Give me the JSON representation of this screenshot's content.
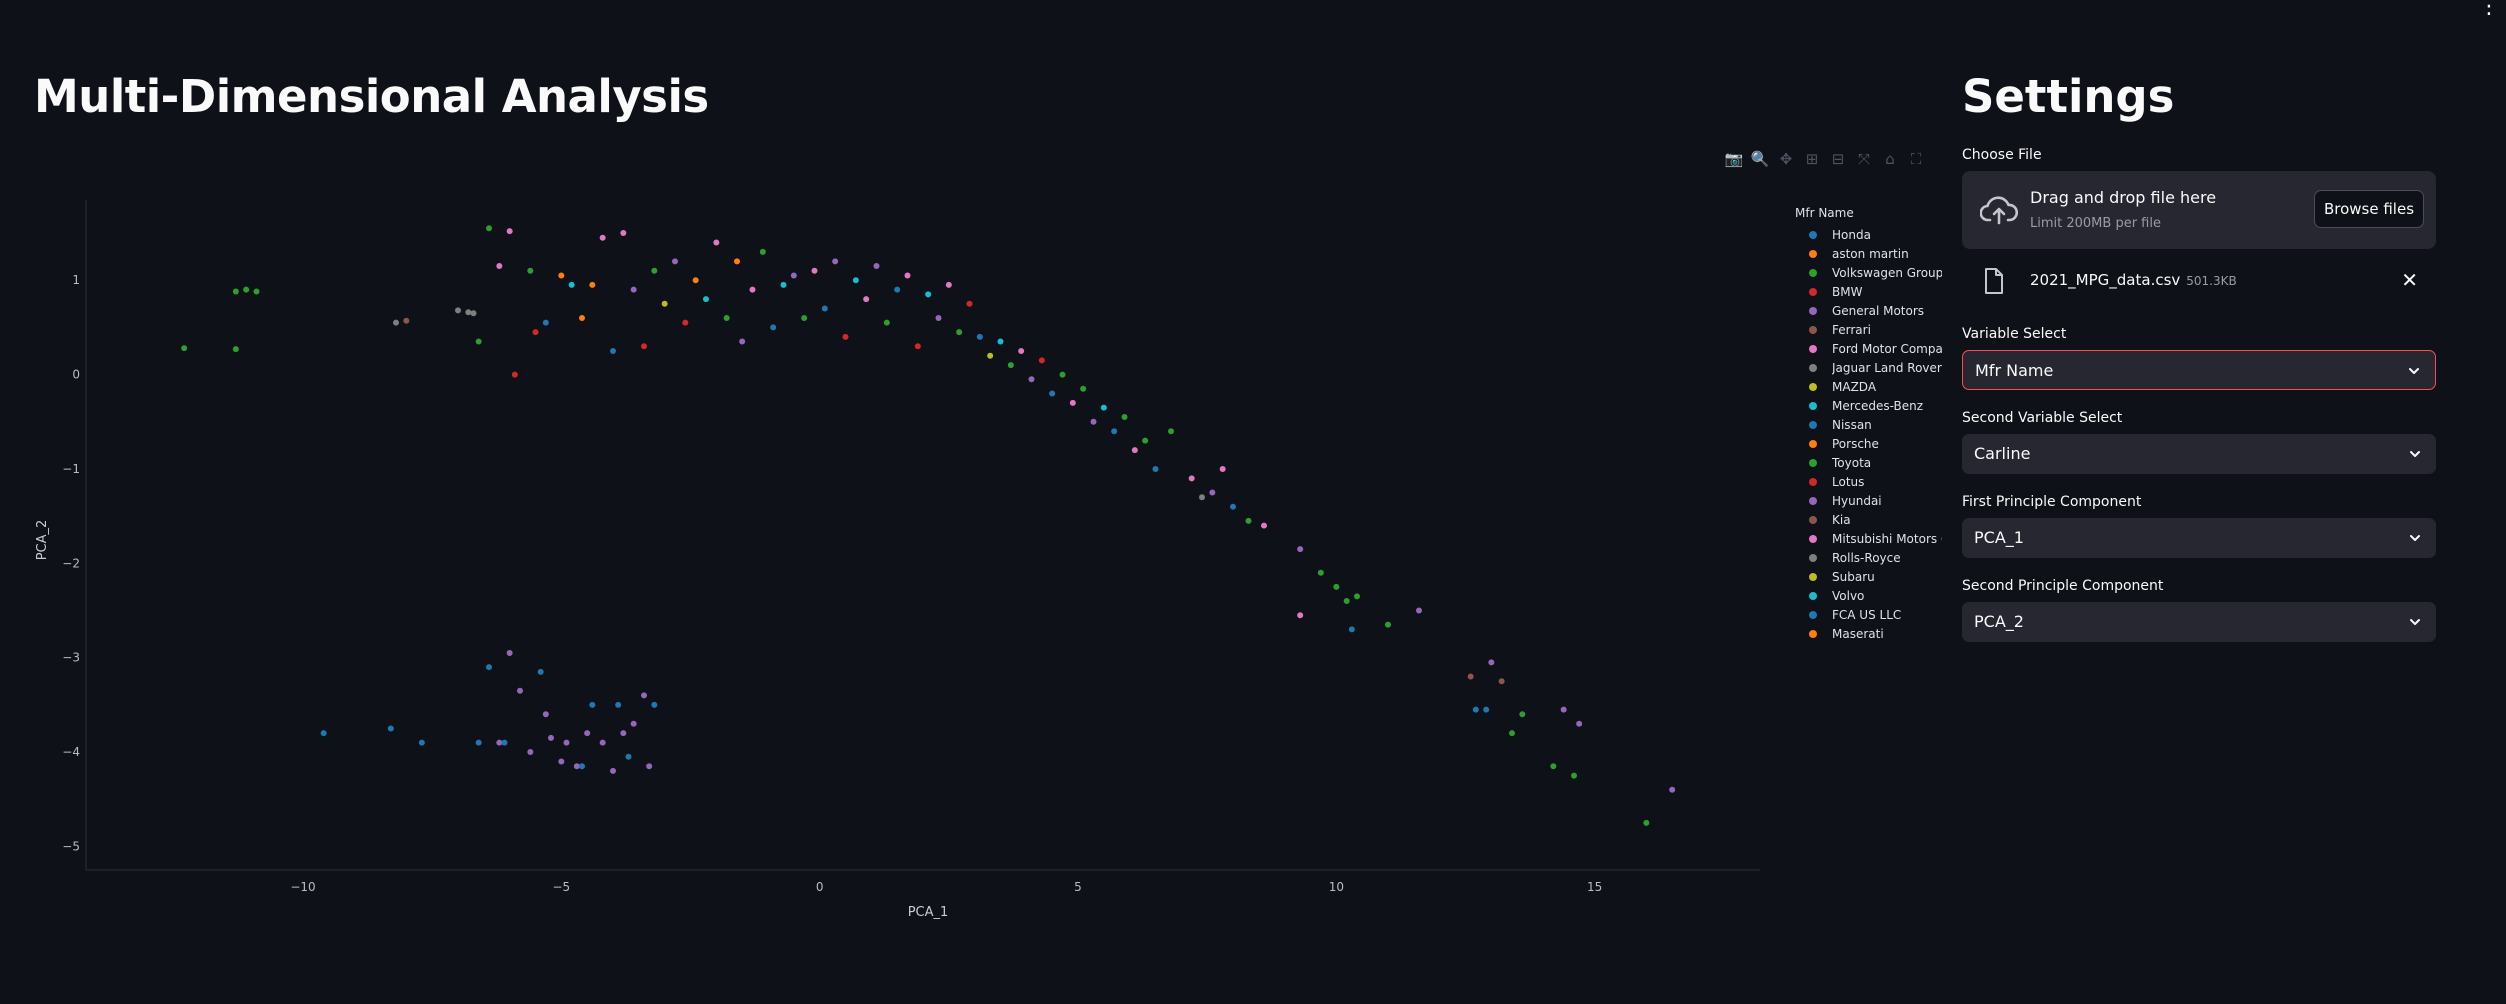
{
  "main": {
    "title": "Multi-Dimensional Analysis"
  },
  "modebar": [
    {
      "name": "camera-icon",
      "glyph": "📷"
    },
    {
      "name": "zoom-icon",
      "glyph": "🔍"
    },
    {
      "name": "pan-icon",
      "glyph": "✥"
    },
    {
      "name": "zoom-in-icon",
      "glyph": "⊞"
    },
    {
      "name": "zoom-out-icon",
      "glyph": "⊟"
    },
    {
      "name": "autoscale-icon",
      "glyph": "⤧"
    },
    {
      "name": "reset-axes-icon",
      "glyph": "⌂"
    },
    {
      "name": "fullscreen-icon",
      "glyph": "⛶"
    }
  ],
  "chart_data": {
    "type": "scatter",
    "title": "",
    "xlabel": "PCA_1",
    "ylabel": "PCA_2",
    "xlim": [
      -14.2,
      18.2
    ],
    "ylim": [
      -5.25,
      1.85
    ],
    "xticks": [
      -10,
      -5,
      0,
      5,
      10,
      15
    ],
    "yticks": [
      1,
      0,
      -1,
      -2,
      -3,
      -4,
      -5
    ],
    "tick_labels_x": [
      "−10",
      "−5",
      "0",
      "5",
      "10",
      "15"
    ],
    "tick_labels_y": [
      "1",
      "0",
      "−1",
      "−2",
      "−3",
      "−4",
      "−5"
    ],
    "grid": false,
    "legend_title": "Mfr Name",
    "legend_placement": "right",
    "series": [
      {
        "name": "Honda",
        "color": "#1f77b4"
      },
      {
        "name": "aston martin",
        "color": "#ff7f0e"
      },
      {
        "name": "Volkswagen Group of",
        "color": "#2ca02c"
      },
      {
        "name": "BMW",
        "color": "#d62728"
      },
      {
        "name": "General Motors",
        "color": "#9467bd"
      },
      {
        "name": "Ferrari",
        "color": "#8c564b"
      },
      {
        "name": "Ford Motor Company",
        "color": "#e377c2"
      },
      {
        "name": "Jaguar Land Rover L",
        "color": "#7f7f7f"
      },
      {
        "name": "MAZDA",
        "color": "#bcbd22"
      },
      {
        "name": "Mercedes-Benz",
        "color": "#17becf"
      },
      {
        "name": "Nissan",
        "color": "#1f77b4"
      },
      {
        "name": "Porsche",
        "color": "#ff7f0e"
      },
      {
        "name": "Toyota",
        "color": "#2ca02c"
      },
      {
        "name": "Lotus",
        "color": "#d62728"
      },
      {
        "name": "Hyundai",
        "color": "#9467bd"
      },
      {
        "name": "Kia",
        "color": "#8c564b"
      },
      {
        "name": "Mitsubishi Motors Co",
        "color": "#e377c2"
      },
      {
        "name": "Rolls-Royce",
        "color": "#7f7f7f"
      },
      {
        "name": "Subaru",
        "color": "#bcbd22"
      },
      {
        "name": "Volvo",
        "color": "#17becf"
      },
      {
        "name": "FCA US LLC",
        "color": "#1f77b4"
      },
      {
        "name": "Maserati",
        "color": "#ff7f0e"
      }
    ],
    "points": [
      [
        -12.3,
        0.28,
        2
      ],
      [
        -11.3,
        0.88,
        2
      ],
      [
        -11.1,
        0.9,
        2
      ],
      [
        -10.9,
        0.88,
        2
      ],
      [
        -11.3,
        0.27,
        2
      ],
      [
        -8.2,
        0.55,
        7
      ],
      [
        -8.0,
        0.57,
        5
      ],
      [
        -7.0,
        0.68,
        7
      ],
      [
        -6.8,
        0.66,
        7
      ],
      [
        -6.7,
        0.65,
        7
      ],
      [
        -6.6,
        0.35,
        2
      ],
      [
        -6.4,
        1.55,
        2
      ],
      [
        -6.0,
        1.52,
        6
      ],
      [
        -6.2,
        1.15,
        6
      ],
      [
        -5.9,
        0.0,
        3
      ],
      [
        -5.6,
        1.1,
        2
      ],
      [
        -5.5,
        0.45,
        3
      ],
      [
        -5.3,
        0.55,
        0
      ],
      [
        -5.0,
        1.05,
        1
      ],
      [
        -4.8,
        0.95,
        9
      ],
      [
        -4.6,
        0.6,
        1
      ],
      [
        -4.4,
        0.95,
        1
      ],
      [
        -4.2,
        1.45,
        6
      ],
      [
        -4.0,
        0.25,
        0
      ],
      [
        -3.8,
        1.5,
        6
      ],
      [
        -3.6,
        0.9,
        4
      ],
      [
        -3.4,
        0.3,
        3
      ],
      [
        -3.2,
        1.1,
        2
      ],
      [
        -3.0,
        0.75,
        8
      ],
      [
        -2.8,
        1.2,
        4
      ],
      [
        -2.6,
        0.55,
        3
      ],
      [
        -2.4,
        1.0,
        1
      ],
      [
        -2.2,
        0.8,
        9
      ],
      [
        -2.0,
        1.4,
        6
      ],
      [
        -1.8,
        0.6,
        2
      ],
      [
        -1.6,
        1.2,
        1
      ],
      [
        -1.5,
        0.35,
        4
      ],
      [
        -1.3,
        0.9,
        6
      ],
      [
        -1.1,
        1.3,
        2
      ],
      [
        -0.9,
        0.5,
        0
      ],
      [
        -0.7,
        0.95,
        9
      ],
      [
        -0.5,
        1.05,
        4
      ],
      [
        -0.3,
        0.6,
        2
      ],
      [
        -0.1,
        1.1,
        6
      ],
      [
        0.1,
        0.7,
        0
      ],
      [
        0.3,
        1.2,
        4
      ],
      [
        0.5,
        0.4,
        3
      ],
      [
        0.7,
        1.0,
        9
      ],
      [
        0.9,
        0.8,
        6
      ],
      [
        1.1,
        1.15,
        4
      ],
      [
        1.3,
        0.55,
        2
      ],
      [
        1.5,
        0.9,
        0
      ],
      [
        1.7,
        1.05,
        6
      ],
      [
        1.9,
        0.3,
        3
      ],
      [
        2.1,
        0.85,
        9
      ],
      [
        2.3,
        0.6,
        4
      ],
      [
        2.5,
        0.95,
        6
      ],
      [
        2.7,
        0.45,
        2
      ],
      [
        2.9,
        0.75,
        3
      ],
      [
        3.1,
        0.4,
        0
      ],
      [
        3.3,
        0.2,
        8
      ],
      [
        3.5,
        0.35,
        9
      ],
      [
        3.7,
        0.1,
        2
      ],
      [
        3.9,
        0.25,
        6
      ],
      [
        4.1,
        -0.05,
        4
      ],
      [
        4.3,
        0.15,
        3
      ],
      [
        4.5,
        -0.2,
        0
      ],
      [
        4.7,
        0.0,
        12
      ],
      [
        4.9,
        -0.3,
        6
      ],
      [
        5.1,
        -0.15,
        2
      ],
      [
        5.3,
        -0.5,
        4
      ],
      [
        5.5,
        -0.35,
        9
      ],
      [
        5.7,
        -0.6,
        0
      ],
      [
        5.9,
        -0.45,
        2
      ],
      [
        6.1,
        -0.8,
        6
      ],
      [
        6.3,
        -0.7,
        2
      ],
      [
        6.5,
        -1.0,
        0
      ],
      [
        6.8,
        -0.6,
        2
      ],
      [
        7.2,
        -1.1,
        6
      ],
      [
        7.4,
        -1.3,
        7
      ],
      [
        7.6,
        -1.25,
        4
      ],
      [
        7.8,
        -1.0,
        6
      ],
      [
        8.0,
        -1.4,
        0
      ],
      [
        8.3,
        -1.55,
        2
      ],
      [
        8.6,
        -1.6,
        6
      ],
      [
        9.3,
        -1.85,
        4
      ],
      [
        9.3,
        -2.55,
        6
      ],
      [
        9.7,
        -2.1,
        2
      ],
      [
        10.0,
        -2.25,
        2
      ],
      [
        10.2,
        -2.4,
        2
      ],
      [
        10.3,
        -2.7,
        0
      ],
      [
        10.4,
        -2.35,
        2
      ],
      [
        11.0,
        -2.65,
        2
      ],
      [
        11.6,
        -2.5,
        4
      ],
      [
        12.6,
        -3.2,
        5
      ],
      [
        12.7,
        -3.55,
        0
      ],
      [
        12.9,
        -3.55,
        0
      ],
      [
        13.0,
        -3.05,
        4
      ],
      [
        13.2,
        -3.25,
        5
      ],
      [
        13.4,
        -3.8,
        2
      ],
      [
        13.6,
        -3.6,
        2
      ],
      [
        14.2,
        -4.15,
        2
      ],
      [
        14.4,
        -3.55,
        4
      ],
      [
        14.6,
        -4.25,
        2
      ],
      [
        14.7,
        -3.7,
        4
      ],
      [
        16.0,
        -4.75,
        2
      ],
      [
        16.5,
        -4.4,
        4
      ],
      [
        -9.6,
        -3.8,
        0
      ],
      [
        -8.3,
        -3.75,
        0
      ],
      [
        -7.7,
        -3.9,
        0
      ],
      [
        -6.6,
        -3.9,
        0
      ],
      [
        -6.4,
        -3.1,
        0
      ],
      [
        -6.2,
        -3.9,
        4
      ],
      [
        -6.0,
        -2.95,
        4
      ],
      [
        -5.8,
        -3.35,
        4
      ],
      [
        -5.6,
        -4.0,
        4
      ],
      [
        -5.4,
        -3.15,
        0
      ],
      [
        -5.2,
        -3.85,
        4
      ],
      [
        -5.0,
        -4.1,
        4
      ],
      [
        -4.9,
        -3.9,
        4
      ],
      [
        -4.7,
        -4.15,
        4
      ],
      [
        -4.5,
        -3.8,
        4
      ],
      [
        -4.4,
        -3.5,
        0
      ],
      [
        -4.2,
        -3.9,
        4
      ],
      [
        -4.0,
        -4.2,
        4
      ],
      [
        -3.9,
        -3.5,
        0
      ],
      [
        -3.7,
        -4.05,
        0
      ],
      [
        -3.6,
        -3.7,
        4
      ],
      [
        -3.4,
        -3.4,
        4
      ],
      [
        -3.3,
        -4.15,
        4
      ],
      [
        -3.2,
        -3.5,
        0
      ],
      [
        -4.6,
        -4.15,
        0
      ],
      [
        -5.3,
        -3.6,
        4
      ],
      [
        -6.1,
        -3.9,
        0
      ],
      [
        -3.8,
        -3.8,
        4
      ]
    ]
  },
  "sidebar": {
    "title": "Settings",
    "choose_file_label": "Choose File",
    "uploader": {
      "drop_text": "Drag and drop file here",
      "limit_text": "Limit 200MB per file",
      "browse_label": "Browse files"
    },
    "file": {
      "name": "2021_MPG_data.csv",
      "size": "501.3KB"
    },
    "selects": [
      {
        "label": "Variable Select",
        "value": "Mfr Name"
      },
      {
        "label": "Second Variable Select",
        "value": "Carline"
      },
      {
        "label": "First Principle Component",
        "value": "PCA_1"
      },
      {
        "label": "Second Principle Component",
        "value": "PCA_2"
      }
    ]
  }
}
